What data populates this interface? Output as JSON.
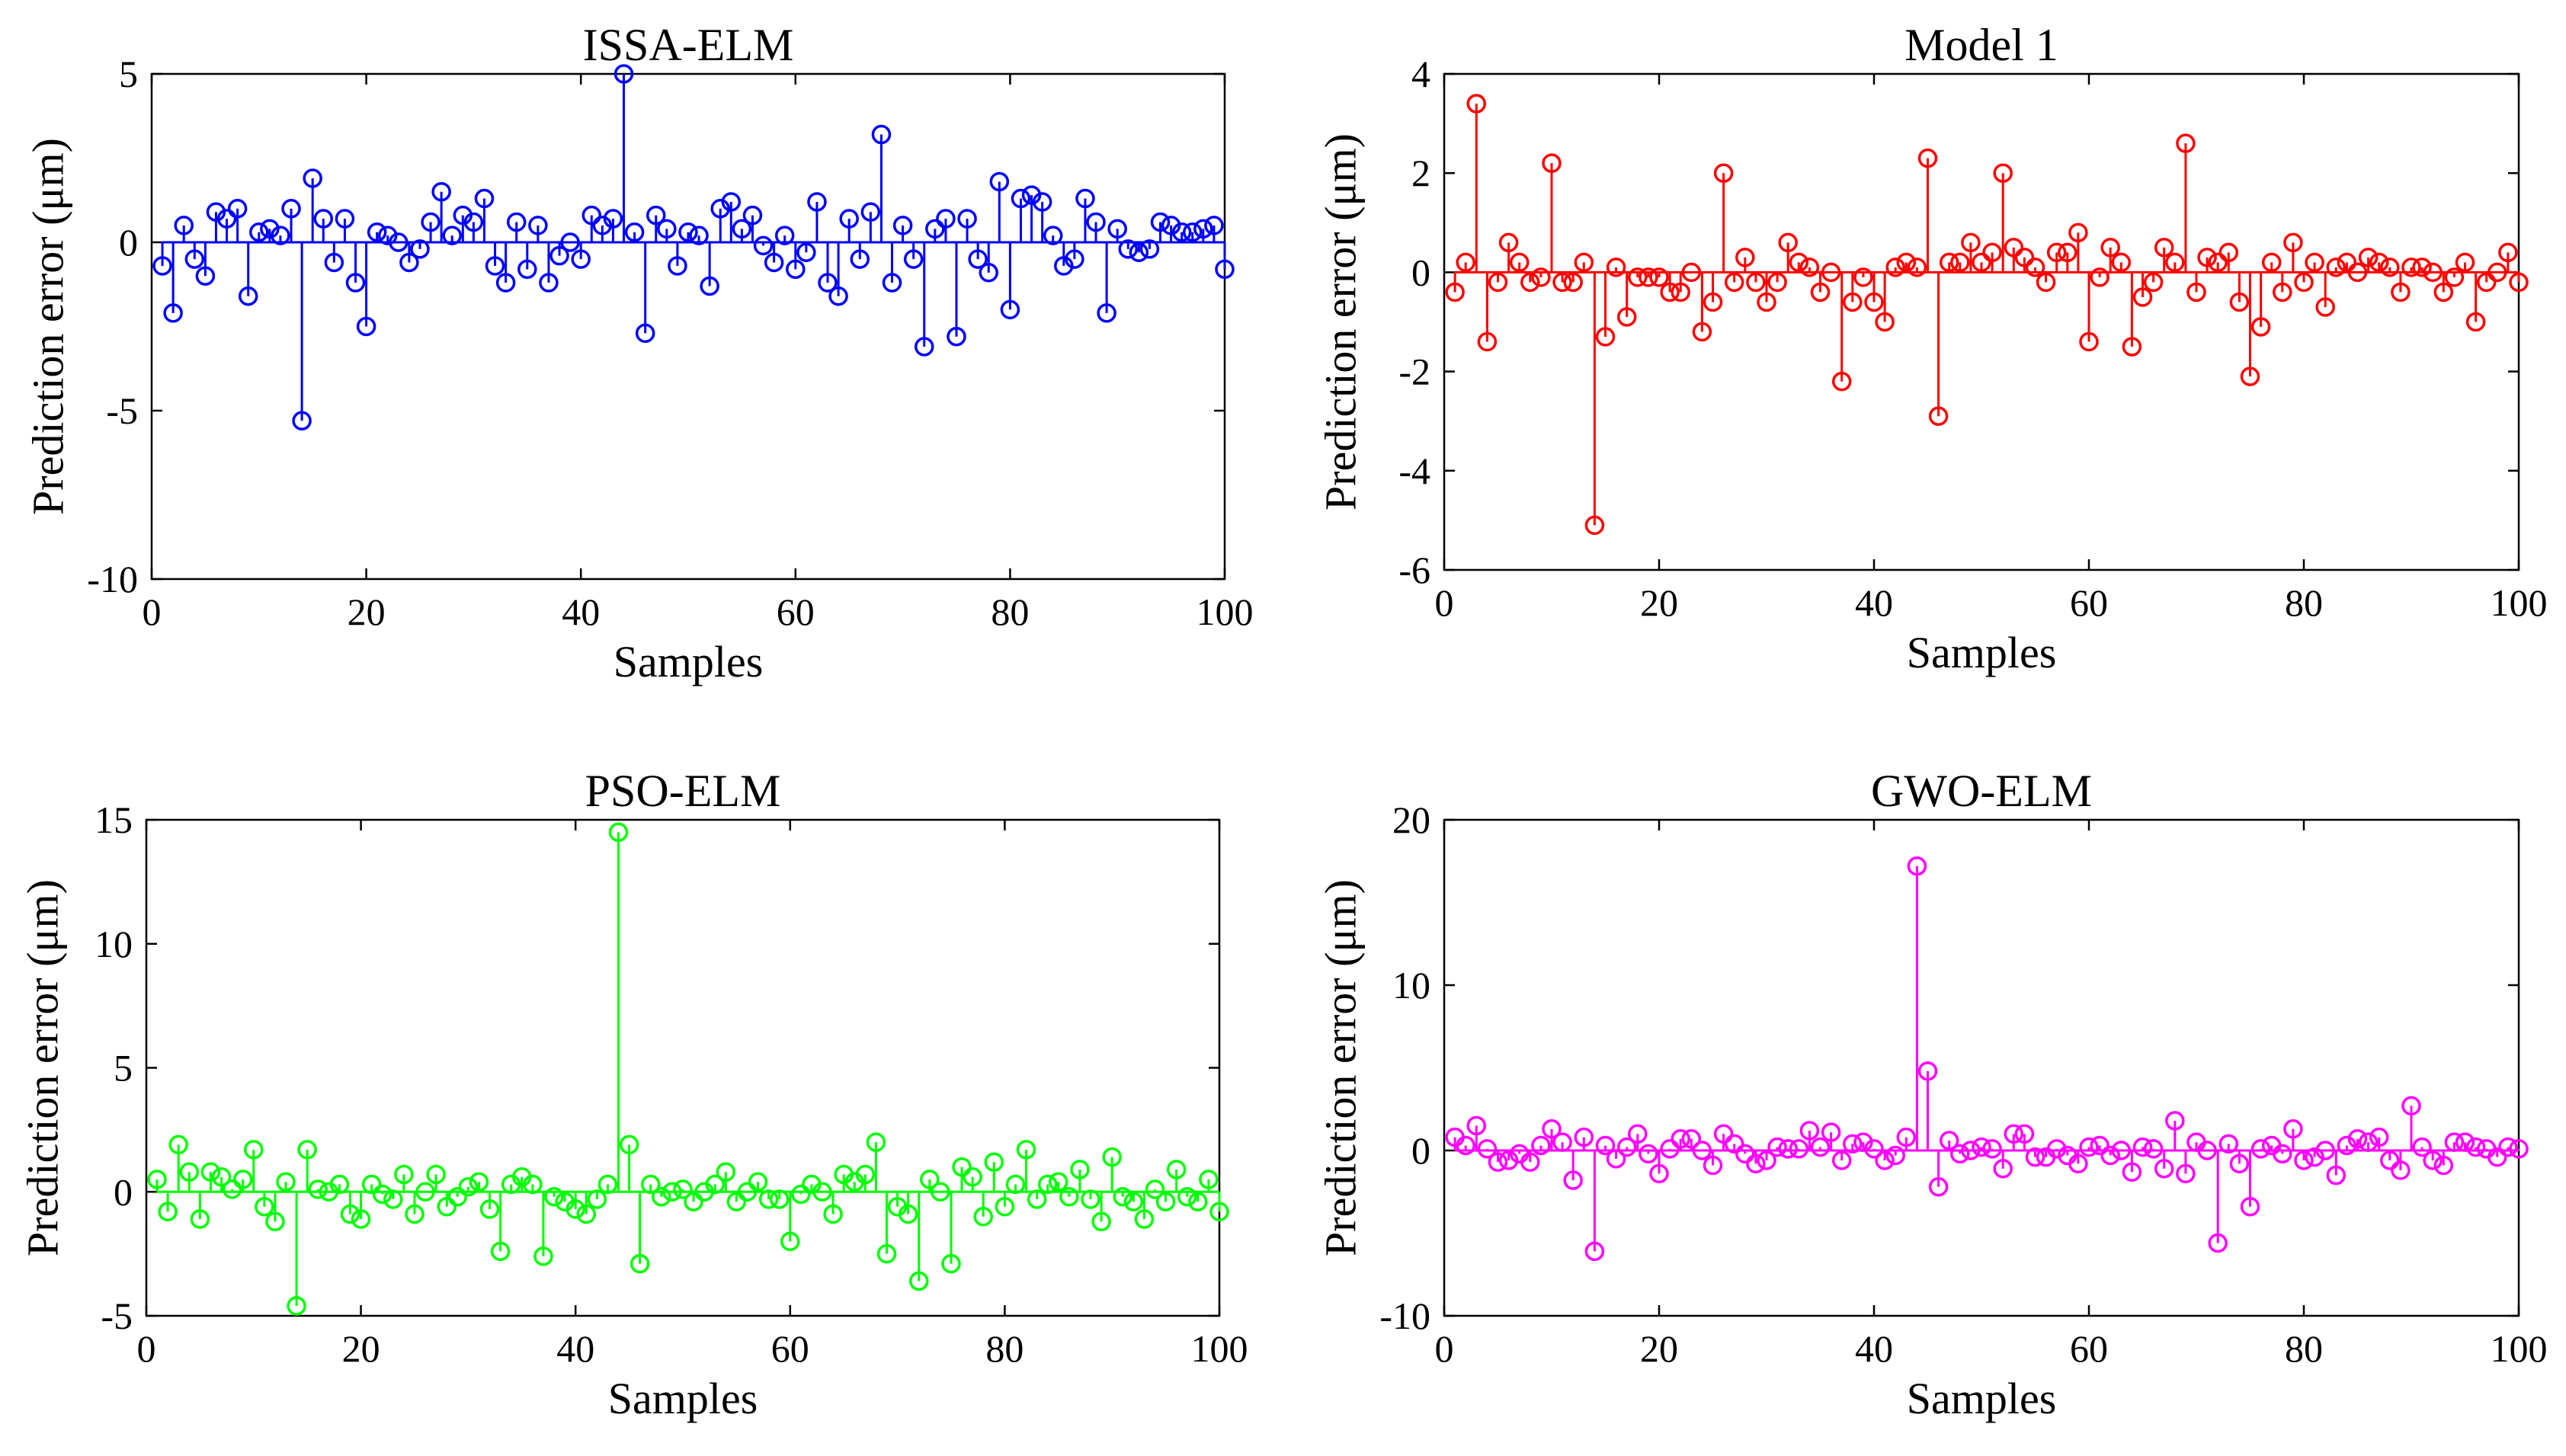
{
  "chart_data": [
    {
      "type": "stem",
      "title": "ISSA-ELM",
      "xlabel": "Samples",
      "ylabel": "Prediction error (μm)",
      "xlim": [
        0,
        100
      ],
      "ylim": [
        -10,
        5
      ],
      "xticks": [
        0,
        20,
        40,
        60,
        80,
        100
      ],
      "yticks": [
        -10,
        -5,
        0,
        5
      ],
      "color": "#0000ff",
      "values": [
        -0.7,
        -2.1,
        0.5,
        -0.5,
        -1.0,
        0.9,
        0.7,
        1.0,
        -1.6,
        0.3,
        0.4,
        0.2,
        1.0,
        -5.3,
        1.9,
        0.7,
        -0.6,
        0.7,
        -1.2,
        -2.5,
        0.3,
        0.2,
        0.0,
        -0.6,
        -0.2,
        0.6,
        1.5,
        0.2,
        0.8,
        0.6,
        1.3,
        -0.7,
        -1.2,
        0.6,
        -0.8,
        0.5,
        -1.2,
        -0.4,
        0.0,
        -0.5,
        0.8,
        0.5,
        0.7,
        5.0,
        0.3,
        -2.7,
        0.8,
        0.4,
        -0.7,
        0.3,
        0.2,
        -1.3,
        1.0,
        1.2,
        0.4,
        0.8,
        -0.1,
        -0.6,
        0.2,
        -0.8,
        -0.3,
        1.2,
        -1.2,
        -1.6,
        0.7,
        -0.5,
        0.9,
        3.2,
        -1.2,
        0.5,
        -0.5,
        -3.1,
        0.4,
        0.7,
        -2.8,
        0.7,
        -0.5,
        -0.9,
        1.8,
        -2.0,
        1.3,
        1.4,
        1.2,
        0.2,
        -0.7,
        -0.5,
        1.3,
        0.6,
        -2.1,
        0.4,
        -0.2,
        -0.3,
        -0.2,
        0.6,
        0.5,
        0.3,
        0.3,
        0.4,
        0.5,
        -0.8
      ]
    },
    {
      "type": "stem",
      "title": "Model 1",
      "xlabel": "Samples",
      "ylabel": "Prediction error (μm)",
      "xlim": [
        0,
        100
      ],
      "ylim": [
        -6,
        4
      ],
      "xticks": [
        0,
        20,
        40,
        60,
        80,
        100
      ],
      "yticks": [
        -6,
        -4,
        -2,
        0,
        2,
        4
      ],
      "color": "#ff0000",
      "values": [
        -0.4,
        0.2,
        3.4,
        -1.4,
        -0.2,
        0.6,
        0.2,
        -0.2,
        -0.1,
        2.2,
        -0.2,
        -0.2,
        0.2,
        -5.1,
        -1.3,
        0.1,
        -0.9,
        -0.1,
        -0.1,
        -0.1,
        -0.4,
        -0.4,
        0.0,
        -1.2,
        -0.6,
        2.0,
        -0.2,
        0.3,
        -0.2,
        -0.6,
        -0.2,
        0.6,
        0.2,
        0.1,
        -0.4,
        0.0,
        -2.2,
        -0.6,
        -0.1,
        -0.6,
        -1.0,
        0.1,
        0.2,
        0.1,
        2.3,
        -2.9,
        0.2,
        0.2,
        0.6,
        0.2,
        0.4,
        2.0,
        0.5,
        0.3,
        0.1,
        -0.2,
        0.4,
        0.4,
        0.8,
        -1.4,
        -0.1,
        0.5,
        0.2,
        -1.5,
        -0.5,
        -0.2,
        0.5,
        0.2,
        2.6,
        -0.4,
        0.3,
        0.2,
        0.4,
        -0.6,
        -2.1,
        -1.1,
        0.2,
        -0.4,
        0.6,
        -0.2,
        0.2,
        -0.7,
        0.1,
        0.2,
        0.0,
        0.3,
        0.2,
        0.1,
        -0.4,
        0.1,
        0.1,
        0.0,
        -0.4,
        -0.1,
        0.2,
        -1.0,
        -0.2,
        0.0,
        0.4,
        -0.2
      ]
    },
    {
      "type": "stem",
      "title": "PSO-ELM",
      "xlabel": "Samples",
      "ylabel": "Prediction error (μm)",
      "xlim": [
        0,
        100
      ],
      "ylim": [
        -5,
        15
      ],
      "xticks": [
        0,
        20,
        40,
        60,
        80,
        100
      ],
      "yticks": [
        -5,
        0,
        5,
        10,
        15
      ],
      "color": "#00ff00",
      "values": [
        0.5,
        -0.8,
        1.9,
        0.8,
        -1.1,
        0.8,
        0.6,
        0.1,
        0.5,
        1.7,
        -0.6,
        -1.2,
        0.4,
        -4.6,
        1.7,
        0.1,
        0.0,
        0.3,
        -0.9,
        -1.1,
        0.3,
        -0.1,
        -0.3,
        0.7,
        -0.9,
        0.0,
        0.7,
        -0.6,
        -0.2,
        0.2,
        0.4,
        -0.7,
        -2.4,
        0.3,
        0.6,
        0.3,
        -2.6,
        -0.2,
        -0.4,
        -0.7,
        -0.9,
        -0.3,
        0.3,
        14.5,
        1.9,
        -2.9,
        0.3,
        -0.2,
        0.0,
        0.1,
        -0.4,
        0.0,
        0.3,
        0.8,
        -0.4,
        0.0,
        0.4,
        -0.3,
        -0.3,
        -2.0,
        -0.1,
        0.3,
        0.0,
        -0.9,
        0.7,
        0.4,
        0.7,
        2.0,
        -2.5,
        -0.6,
        -0.9,
        -3.6,
        0.5,
        0.0,
        -2.9,
        1.0,
        0.6,
        -1.0,
        1.2,
        -0.6,
        0.3,
        1.7,
        -0.3,
        0.3,
        0.4,
        -0.2,
        0.9,
        -0.3,
        -1.2,
        1.4,
        -0.2,
        -0.4,
        -1.1,
        0.1,
        -0.4,
        0.9,
        -0.2,
        -0.4,
        0.5,
        -0.8
      ]
    },
    {
      "type": "stem",
      "title": "GWO-ELM",
      "xlabel": "Samples",
      "ylabel": "Prediction error (μm)",
      "xlim": [
        0,
        100
      ],
      "ylim": [
        -10,
        20
      ],
      "xticks": [
        0,
        20,
        40,
        60,
        80,
        100
      ],
      "yticks": [
        -10,
        0,
        10,
        20
      ],
      "color": "#ff00ff",
      "values": [
        0.8,
        0.3,
        1.5,
        0.1,
        -0.7,
        -0.6,
        -0.2,
        -0.7,
        0.3,
        1.3,
        0.5,
        -1.8,
        0.8,
        -6.1,
        0.3,
        -0.5,
        0.2,
        1.0,
        -0.2,
        -1.4,
        0.1,
        0.7,
        0.7,
        0.0,
        -0.9,
        1.0,
        0.4,
        -0.2,
        -0.8,
        -0.6,
        0.2,
        0.1,
        0.1,
        1.2,
        0.2,
        1.1,
        -0.6,
        0.4,
        0.5,
        0.1,
        -0.6,
        -0.3,
        0.8,
        17.2,
        4.8,
        -2.2,
        0.6,
        -0.2,
        0.0,
        0.2,
        0.1,
        -1.1,
        1.0,
        1.0,
        -0.4,
        -0.4,
        0.1,
        -0.3,
        -0.8,
        0.2,
        0.3,
        -0.3,
        0.0,
        -1.3,
        0.2,
        0.1,
        -1.1,
        1.8,
        -1.4,
        0.5,
        0.0,
        -5.6,
        0.4,
        -0.8,
        -3.4,
        0.1,
        0.3,
        -0.2,
        1.3,
        -0.6,
        -0.4,
        0.0,
        -1.5,
        0.3,
        0.7,
        0.5,
        0.8,
        -0.6,
        -1.2,
        2.7,
        0.2,
        -0.6,
        -0.9,
        0.5,
        0.5,
        0.2,
        0.1,
        -0.4,
        0.2,
        0.1
      ]
    }
  ]
}
